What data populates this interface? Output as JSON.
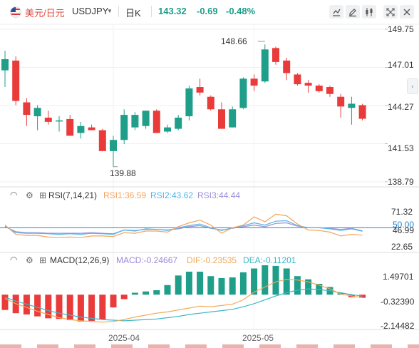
{
  "header": {
    "pair_cn": "美元/日元",
    "pair_en": "USDJPY",
    "period": "日K",
    "price": "143.32",
    "change": "-0.69",
    "change_pct": "-0.48%",
    "price_color": "#1f9e89"
  },
  "toolbar_icons": [
    "chart-mode-icon",
    "draw-icon",
    "candle-type-icon",
    "fullscreen-icon",
    "close-icon"
  ],
  "colors": {
    "up": "#1f9e89",
    "down": "#ea3b3b",
    "rsi1": "#f6a35b",
    "rsi2": "#53b6e6",
    "rsi3": "#9c8fd6",
    "mid_line": "#2a86c7",
    "macd": "#9a86d8",
    "dif": "#f4a857",
    "dea": "#3bb7c6"
  },
  "price_axis": {
    "ticks": [
      "149.75",
      "147.01",
      "144.27",
      "141.53",
      "138.79"
    ],
    "range": [
      138.79,
      149.75
    ]
  },
  "annotations": {
    "high": "148.66",
    "low": "139.88"
  },
  "rsi": {
    "title": "RSI(7,14,21)",
    "rsi1_label": "RSI1:36.59",
    "rsi2_label": "RSI2:43.62",
    "rsi3_label": "RSI3:44.44",
    "ticks": [
      "71.32",
      "50.00",
      "46.99",
      "22.65"
    ]
  },
  "macd": {
    "title": "MACD(12,26,9)",
    "macd_label": "MACD:-0.24667",
    "dif_label": "DIF:-0.23535",
    "dea_label": "DEA:-0.11201",
    "ticks": [
      "1.49701",
      "-0.32390",
      "-2.14482"
    ]
  },
  "x_axis": {
    "labels": [
      "2025-04",
      "2025-05"
    ]
  },
  "chart_data": {
    "type": "candlestick",
    "candles": [
      {
        "o": 146.8,
        "h": 148.2,
        "l": 145.6,
        "c": 147.6
      },
      {
        "o": 147.5,
        "h": 147.8,
        "l": 144.3,
        "c": 144.6
      },
      {
        "o": 144.5,
        "h": 144.8,
        "l": 142.8,
        "c": 143.6
      },
      {
        "o": 143.5,
        "h": 144.3,
        "l": 142.5,
        "c": 144.1
      },
      {
        "o": 143.4,
        "h": 143.9,
        "l": 142.9,
        "c": 143.1
      },
      {
        "o": 143.2,
        "h": 143.5,
        "l": 142.4,
        "c": 143.2
      },
      {
        "o": 143.3,
        "h": 143.6,
        "l": 142.1,
        "c": 142.1
      },
      {
        "o": 142.3,
        "h": 143.1,
        "l": 141.9,
        "c": 142.8
      },
      {
        "o": 142.7,
        "h": 142.9,
        "l": 142.5,
        "c": 142.5
      },
      {
        "o": 142.5,
        "h": 142.6,
        "l": 141.0,
        "c": 141.0
      },
      {
        "o": 141.0,
        "h": 142.1,
        "l": 139.88,
        "c": 141.8
      },
      {
        "o": 141.8,
        "h": 144.0,
        "l": 141.5,
        "c": 143.6
      },
      {
        "o": 142.7,
        "h": 143.8,
        "l": 142.5,
        "c": 143.6
      },
      {
        "o": 142.8,
        "h": 143.9,
        "l": 142.6,
        "c": 143.9
      },
      {
        "o": 143.9,
        "h": 144.0,
        "l": 142.3,
        "c": 142.3
      },
      {
        "o": 142.4,
        "h": 142.9,
        "l": 142.3,
        "c": 142.7
      },
      {
        "o": 142.6,
        "h": 143.6,
        "l": 142.5,
        "c": 143.4
      },
      {
        "o": 143.5,
        "h": 145.7,
        "l": 143.2,
        "c": 145.5
      },
      {
        "o": 145.6,
        "h": 146.2,
        "l": 145.0,
        "c": 145.2
      },
      {
        "o": 144.9,
        "h": 145.0,
        "l": 143.9,
        "c": 144.0
      },
      {
        "o": 144.0,
        "h": 144.5,
        "l": 142.6,
        "c": 142.6
      },
      {
        "o": 142.7,
        "h": 144.2,
        "l": 142.7,
        "c": 144.0
      },
      {
        "o": 144.1,
        "h": 146.3,
        "l": 144.0,
        "c": 146.2
      },
      {
        "o": 146.2,
        "h": 146.5,
        "l": 145.3,
        "c": 145.7
      },
      {
        "o": 146.0,
        "h": 148.66,
        "l": 145.9,
        "c": 148.3
      },
      {
        "o": 148.4,
        "h": 148.5,
        "l": 147.2,
        "c": 147.4
      },
      {
        "o": 147.5,
        "h": 147.7,
        "l": 146.1,
        "c": 146.6
      },
      {
        "o": 146.5,
        "h": 146.6,
        "l": 145.7,
        "c": 145.8
      },
      {
        "o": 145.9,
        "h": 146.1,
        "l": 145.2,
        "c": 145.7
      },
      {
        "o": 145.7,
        "h": 145.8,
        "l": 145.2,
        "c": 145.3
      },
      {
        "o": 145.6,
        "h": 145.7,
        "l": 144.9,
        "c": 145.1
      },
      {
        "o": 144.9,
        "h": 145.1,
        "l": 143.4,
        "c": 144.2
      },
      {
        "o": 144.1,
        "h": 144.9,
        "l": 142.9,
        "c": 144.4
      },
      {
        "o": 144.3,
        "h": 144.4,
        "l": 143.2,
        "c": 143.32
      }
    ],
    "rsi1": [
      55,
      38,
      36,
      36,
      33,
      32,
      33,
      32,
      35,
      35,
      34,
      41,
      40,
      44,
      44,
      42,
      52,
      59,
      64,
      55,
      40,
      50,
      55,
      70,
      61,
      75,
      72,
      57,
      46,
      45,
      42,
      35,
      38,
      36.59
    ],
    "rsi2": [
      53,
      41,
      40,
      40,
      39,
      38,
      39,
      38,
      40,
      39,
      38,
      46,
      44,
      48,
      47,
      45,
      50,
      54,
      57,
      50,
      45,
      50,
      54,
      59,
      55,
      62,
      63,
      54,
      50,
      50,
      48,
      45,
      48,
      43.62
    ],
    "rsi3": [
      52,
      43,
      41,
      41,
      40,
      40,
      40,
      40,
      41,
      40,
      39,
      46,
      45,
      47,
      47,
      46,
      48,
      52,
      54,
      49,
      46,
      49,
      52,
      55,
      52,
      58,
      59,
      53,
      50,
      50,
      49,
      47,
      49,
      44.44
    ],
    "macd_hist": [
      -1.2,
      -1.45,
      -1.55,
      -1.7,
      -1.85,
      -1.9,
      -2.0,
      -2.1,
      -2.05,
      -1.95,
      -1.0,
      -0.35,
      0.15,
      0.25,
      0.35,
      0.75,
      1.5,
      1.8,
      1.8,
      1.45,
      1.3,
      1.35,
      1.75,
      2.05,
      2.3,
      2.25,
      2.05,
      1.45,
      1.2,
      0.85,
      0.6,
      0.15,
      -0.2,
      -0.24667
    ],
    "dif": [
      -0.3,
      -0.7,
      -1.0,
      -1.3,
      -1.55,
      -1.8,
      -1.95,
      -2.05,
      -2.1,
      -2.15,
      -2.1,
      -1.95,
      -1.75,
      -1.6,
      -1.45,
      -1.35,
      -1.2,
      -1.05,
      -0.9,
      -0.95,
      -0.85,
      -0.75,
      -0.4,
      0.2,
      0.6,
      1.0,
      1.2,
      1.15,
      1.0,
      0.75,
      0.45,
      0.05,
      -0.1,
      -0.23535
    ],
    "dea": [
      -0.2,
      -0.5,
      -0.75,
      -1.0,
      -1.25,
      -1.45,
      -1.6,
      -1.75,
      -1.85,
      -1.95,
      -2.0,
      -2.05,
      -2.0,
      -1.95,
      -1.9,
      -1.8,
      -1.7,
      -1.55,
      -1.45,
      -1.35,
      -1.25,
      -1.15,
      -0.95,
      -0.7,
      -0.4,
      -0.1,
      0.15,
      0.35,
      0.45,
      0.4,
      0.3,
      0.15,
      0.0,
      -0.11201
    ],
    "rsi_range": [
      10,
      95
    ],
    "macd_range": [
      -2.5,
      2.3
    ]
  }
}
